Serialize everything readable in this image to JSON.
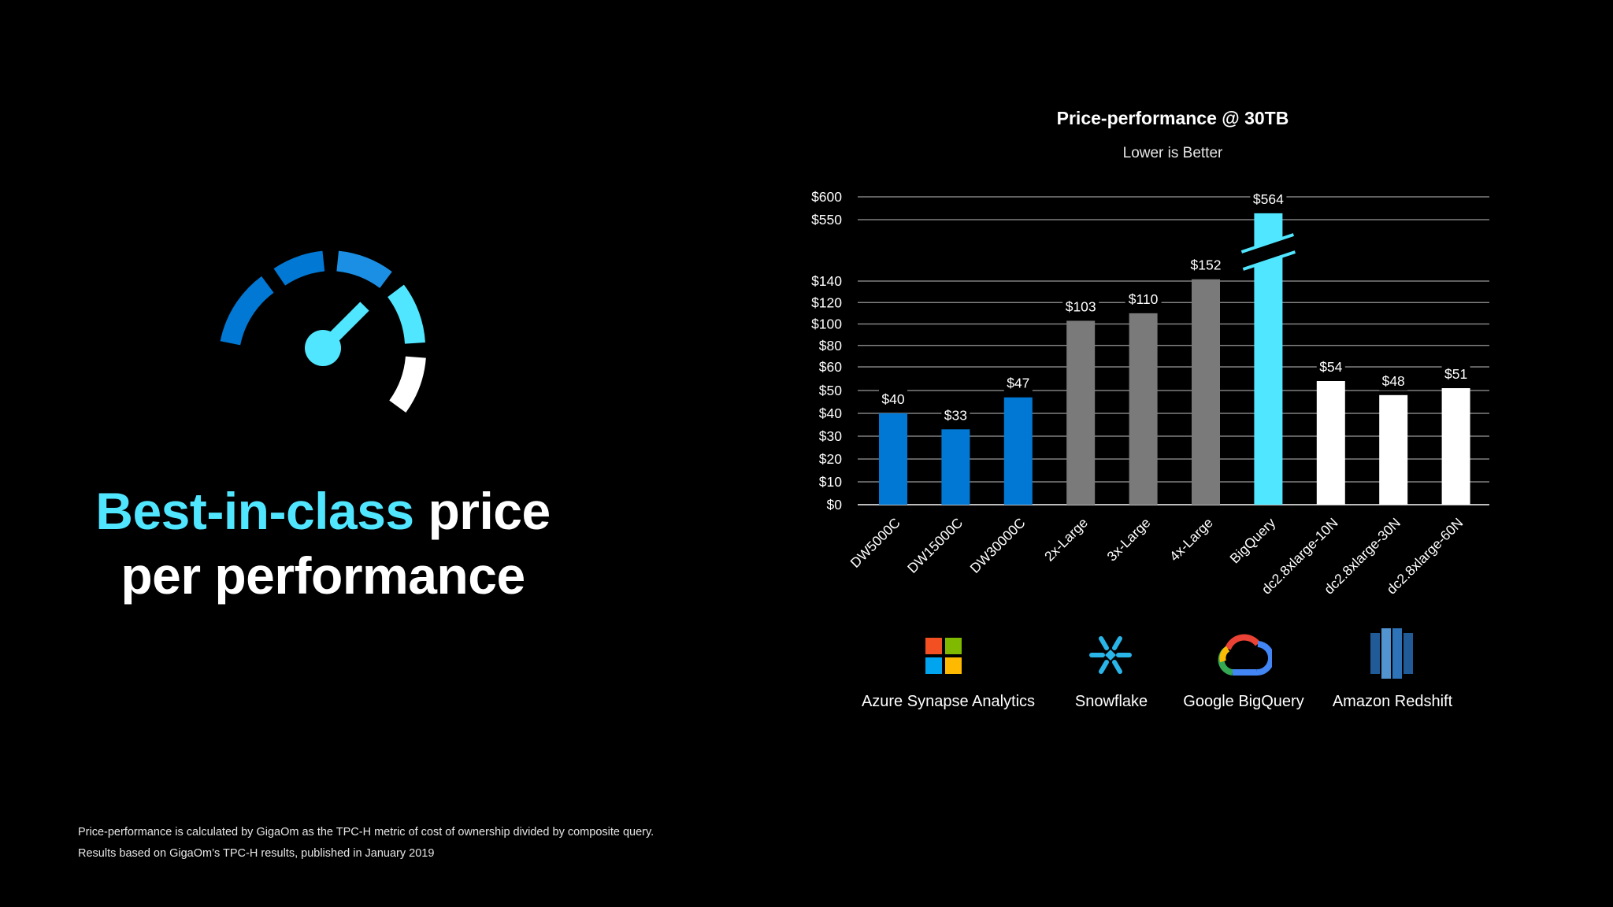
{
  "headline": {
    "accent": "Best-in-class",
    "rest_line1": " price",
    "line2": "per performance"
  },
  "chart_data": {
    "type": "bar",
    "title": "Price-performance @ 30TB",
    "subtitle": "Lower is Better",
    "categories": [
      "DW5000C",
      "DW15000C",
      "DW30000C",
      "2x-Large",
      "3x-Large",
      "4x-Large",
      "BigQuery",
      "dc2.8xlarge-10N",
      "dc2.8xlarge-30N",
      "dc2.8xlarge-60N"
    ],
    "values": [
      40,
      33,
      47,
      103,
      110,
      152,
      564,
      54,
      48,
      51
    ],
    "value_labels": [
      "$40",
      "$33",
      "$47",
      "$103",
      "$110",
      "$152",
      "$564",
      "$54",
      "$48",
      "$51"
    ],
    "bar_colors": [
      "#0078d4",
      "#0078d4",
      "#0078d4",
      "#7a7a7a",
      "#7a7a7a",
      "#7a7a7a",
      "#50e6ff",
      "#ffffff",
      "#ffffff",
      "#ffffff"
    ],
    "y_ticks": [
      {
        "value": 0,
        "label": "$0"
      },
      {
        "value": 10,
        "label": "$10"
      },
      {
        "value": 20,
        "label": "$20"
      },
      {
        "value": 30,
        "label": "$30"
      },
      {
        "value": 40,
        "label": "$40"
      },
      {
        "value": 50,
        "label": "$50"
      },
      {
        "value": 60,
        "label": "$60"
      },
      {
        "value": 80,
        "label": "$80"
      },
      {
        "value": 100,
        "label": "$100"
      },
      {
        "value": 120,
        "label": "$120"
      },
      {
        "value": 140,
        "label": "$140"
      },
      {
        "value": 550,
        "label": "$550"
      },
      {
        "value": 600,
        "label": "$600"
      }
    ],
    "y_scale": "broken (non-linear segments)",
    "axis_break": "BigQuery bar",
    "grid": true,
    "legend": "none"
  },
  "vendors": [
    {
      "name": "Azure Synapse Analytics",
      "icon": "microsoft-logo-icon"
    },
    {
      "name": "Snowflake",
      "icon": "snowflake-logo-icon"
    },
    {
      "name": "Google BigQuery",
      "icon": "google-cloud-logo-icon"
    },
    {
      "name": "Amazon Redshift",
      "icon": "amazon-redshift-logo-icon"
    }
  ],
  "footnotes": [
    "Price-performance is calculated by GigaOm as the TPC-H metric of cost of ownership divided by composite query.",
    "Results based on GigaOm’s TPC-H results, published in January 2019"
  ],
  "colors": {
    "accent": "#50e6ff",
    "azure_blue": "#0078d4",
    "gray": "#7a7a7a"
  }
}
